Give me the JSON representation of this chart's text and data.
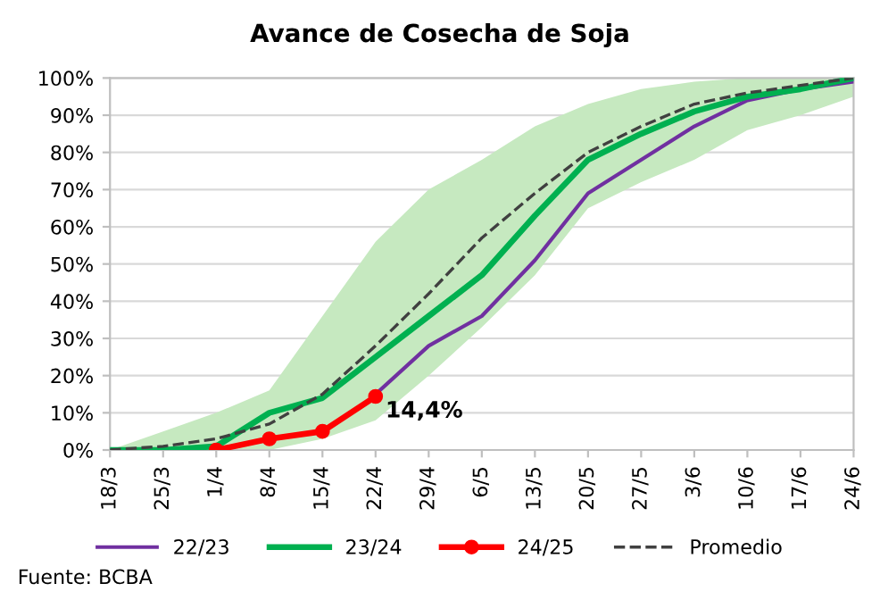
{
  "chart_data": {
    "type": "line",
    "title": "Avance de Cosecha de Soja",
    "categories": [
      "18/3",
      "25/3",
      "1/4",
      "8/4",
      "15/4",
      "22/4",
      "29/4",
      "6/5",
      "13/5",
      "20/5",
      "27/5",
      "3/6",
      "10/6",
      "17/6",
      "24/6"
    ],
    "series": [
      {
        "name": "22/23",
        "color": "#7030a0",
        "values": [
          null,
          null,
          null,
          null,
          null,
          15,
          28,
          36,
          51,
          69,
          78,
          87,
          94,
          97,
          99
        ]
      },
      {
        "name": "23/24",
        "color": "#00b050",
        "values": [
          0,
          0,
          1,
          10,
          14,
          25,
          36,
          47,
          63,
          78,
          85,
          91,
          95,
          97,
          100
        ]
      },
      {
        "name": "24/25",
        "color": "#ff0000",
        "marker": "circle",
        "values": [
          null,
          null,
          0,
          3,
          5,
          14.4,
          null,
          null,
          null,
          null,
          null,
          null,
          null,
          null,
          null
        ],
        "value_labels": [
          null,
          null,
          null,
          null,
          null,
          "14,4%",
          null,
          null,
          null,
          null,
          null,
          null,
          null,
          null,
          null
        ]
      },
      {
        "name": "Promedio",
        "color": "#404040",
        "line_style": "dashed",
        "values": [
          0,
          1,
          3,
          7,
          15,
          28,
          42,
          57,
          69,
          80,
          87,
          93,
          96,
          98,
          100
        ],
        "lower": [
          0,
          0,
          0,
          0,
          3,
          8,
          20,
          33,
          47,
          65,
          72,
          78,
          86,
          90,
          95
        ],
        "upper": [
          0,
          5,
          10,
          16,
          36,
          56,
          70,
          78,
          87,
          93,
          97,
          99,
          100,
          100,
          100
        ]
      }
    ],
    "ylim": [
      0,
      100
    ],
    "yticks": [
      {
        "value": 0,
        "label": "0%"
      },
      {
        "value": 10,
        "label": "10%"
      },
      {
        "value": 20,
        "label": "20%"
      },
      {
        "value": 30,
        "label": "30%"
      },
      {
        "value": 40,
        "label": "40%"
      },
      {
        "value": 50,
        "label": "50%"
      },
      {
        "value": 60,
        "label": "60%"
      },
      {
        "value": 70,
        "label": "70%"
      },
      {
        "value": 80,
        "label": "80%"
      },
      {
        "value": 90,
        "label": "90%"
      },
      {
        "value": 100,
        "label": "100%"
      }
    ],
    "grid": "y",
    "legend": "bottom",
    "annotations": [
      "Fuente: BCBA"
    ]
  }
}
